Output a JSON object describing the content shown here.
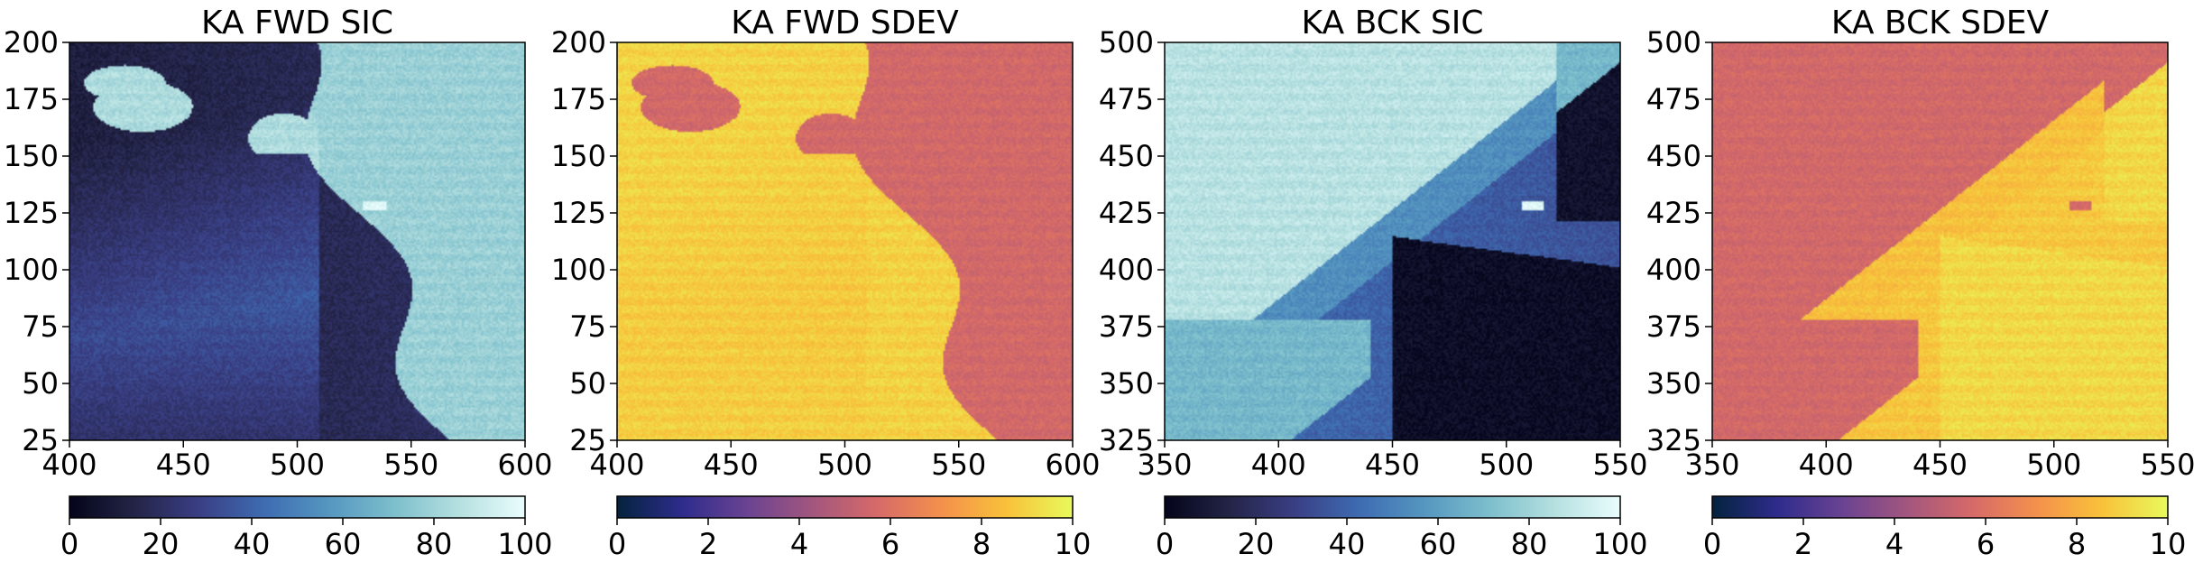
{
  "chart_data": [
    {
      "type": "heatmap",
      "title": "KA FWD SIC",
      "colormap": "ice",
      "field": "fwd",
      "map": "sic",
      "xlim": [
        400,
        600
      ],
      "ylim": [
        25,
        200
      ],
      "xticks": [
        "400",
        "450",
        "500",
        "550",
        "600"
      ],
      "yticks": [
        "25",
        "50",
        "75",
        "100",
        "125",
        "150",
        "175",
        "200"
      ],
      "colorbar": {
        "min": 0,
        "max": 100,
        "ticks": [
          "0",
          "20",
          "40",
          "60",
          "80",
          "100"
        ]
      }
    },
    {
      "type": "heatmap",
      "title": "KA FWD SDEV",
      "colormap": "thermal",
      "field": "fwd",
      "map": "sdev",
      "xlim": [
        400,
        600
      ],
      "ylim": [
        25,
        200
      ],
      "xticks": [
        "400",
        "450",
        "500",
        "550",
        "600"
      ],
      "yticks": [
        "25",
        "50",
        "75",
        "100",
        "125",
        "150",
        "175",
        "200"
      ],
      "colorbar": {
        "min": 0,
        "max": 10,
        "ticks": [
          "0",
          "2",
          "4",
          "6",
          "8",
          "10"
        ]
      }
    },
    {
      "type": "heatmap",
      "title": "KA BCK SIC",
      "colormap": "ice",
      "field": "bck",
      "map": "sic",
      "xlim": [
        350,
        550
      ],
      "ylim": [
        325,
        500
      ],
      "xticks": [
        "350",
        "400",
        "450",
        "500",
        "550"
      ],
      "yticks": [
        "325",
        "350",
        "375",
        "400",
        "425",
        "450",
        "475",
        "500"
      ],
      "colorbar": {
        "min": 0,
        "max": 100,
        "ticks": [
          "0",
          "20",
          "40",
          "60",
          "80",
          "100"
        ]
      }
    },
    {
      "type": "heatmap",
      "title": "KA BCK SDEV",
      "colormap": "thermal",
      "field": "bck",
      "map": "sdev",
      "xlim": [
        350,
        550
      ],
      "ylim": [
        325,
        500
      ],
      "xticks": [
        "350",
        "400",
        "450",
        "500",
        "550"
      ],
      "yticks": [
        "325",
        "350",
        "375",
        "400",
        "425",
        "450",
        "475",
        "500"
      ],
      "colorbar": {
        "min": 0,
        "max": 10,
        "ticks": [
          "0",
          "2",
          "4",
          "6",
          "8",
          "10"
        ]
      }
    }
  ],
  "colormaps": {
    "ice": [
      "#04051a",
      "#242447",
      "#3a3f85",
      "#3e6cb2",
      "#5597c0",
      "#7dbfcc",
      "#b6e0e0",
      "#eafdfd"
    ],
    "thermal": [
      "#04233e",
      "#2e2c8c",
      "#6a4392",
      "#a3567e",
      "#d66a68",
      "#f4914c",
      "#f8c23a",
      "#e8fa5b"
    ]
  }
}
